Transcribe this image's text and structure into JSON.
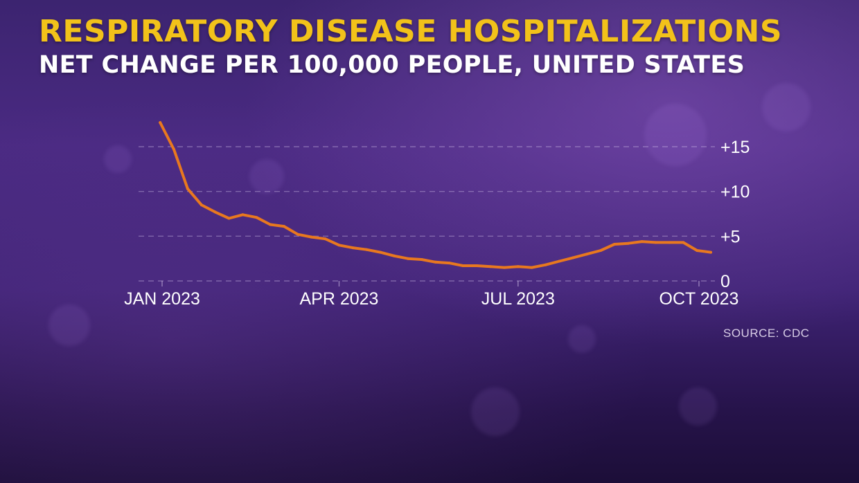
{
  "chart_data": {
    "type": "line",
    "title": "RESPIRATORY DISEASE HOSPITALIZATIONS",
    "subtitle": "NET CHANGE PER 100,000 PEOPLE, UNITED STATES",
    "xlabel": "",
    "ylabel": "",
    "x_ticks": [
      "JAN 2023",
      "APR 2023",
      "JUL 2023",
      "OCT 2023"
    ],
    "y_ticks": [
      "+15",
      "+10",
      "+5",
      "0"
    ],
    "y_tick_values": [
      15,
      10,
      5,
      0
    ],
    "ylim": [
      0,
      15
    ],
    "xlim": [
      "2023-01-01",
      "2023-10-01"
    ],
    "grid": "horizontal dashed",
    "y_axis_side": "right",
    "line_color": "#e8781f",
    "series": [
      {
        "x": [
          "2022-12-31",
          "2023-01-07",
          "2023-01-14",
          "2023-01-21",
          "2023-01-28",
          "2023-02-04",
          "2023-02-11",
          "2023-02-18",
          "2023-02-25",
          "2023-03-04",
          "2023-03-11",
          "2023-03-18",
          "2023-03-25",
          "2023-04-01",
          "2023-04-08",
          "2023-04-15",
          "2023-04-22",
          "2023-04-29",
          "2023-05-06",
          "2023-05-13",
          "2023-05-20",
          "2023-05-27",
          "2023-06-03",
          "2023-06-10",
          "2023-06-17",
          "2023-06-24",
          "2023-07-01",
          "2023-07-08",
          "2023-07-15",
          "2023-07-22",
          "2023-07-29",
          "2023-08-05",
          "2023-08-12",
          "2023-08-19",
          "2023-08-26",
          "2023-09-02",
          "2023-09-09",
          "2023-09-16",
          "2023-09-23",
          "2023-09-30",
          "2023-10-07"
        ],
        "y": [
          17.7,
          14.7,
          10.3,
          8.5,
          7.7,
          7.0,
          7.4,
          7.1,
          6.3,
          6.1,
          5.2,
          4.9,
          4.7,
          4.0,
          3.7,
          3.5,
          3.2,
          2.8,
          2.5,
          2.4,
          2.1,
          2.0,
          1.7,
          1.7,
          1.6,
          1.5,
          1.6,
          1.5,
          1.8,
          2.2,
          2.6,
          3.0,
          3.4,
          4.1,
          4.2,
          4.4,
          4.3,
          4.3,
          4.3,
          3.4,
          3.2
        ]
      }
    ]
  },
  "source": "SOURCE: CDC"
}
